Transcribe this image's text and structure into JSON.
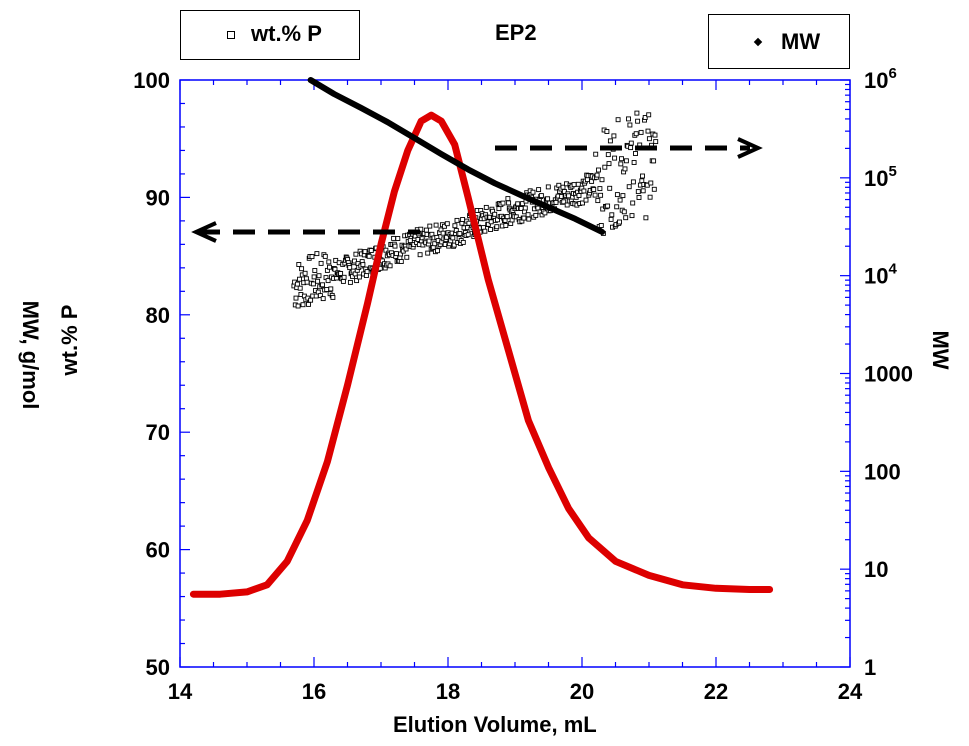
{
  "chart_data": {
    "type": "line",
    "title": "EP2",
    "xlabel": "Elution Volume, mL",
    "ylabel_left_outer": "MW, g/mol",
    "ylabel_left_inner": "wt.% P",
    "ylabel_right": "MW",
    "xlim": [
      14,
      24
    ],
    "ylim_left": [
      50,
      100
    ],
    "ylim_right_log": [
      1,
      1000000
    ],
    "x_ticks": [
      "14",
      "16",
      "18",
      "20",
      "22",
      "24"
    ],
    "y_left_ticks": [
      "50",
      "60",
      "70",
      "80",
      "90",
      "100"
    ],
    "y_right_ticks": [
      {
        "base": "1",
        "exp": ""
      },
      {
        "base": "10",
        "exp": ""
      },
      {
        "base": "100",
        "exp": ""
      },
      {
        "base": "1000",
        "exp": ""
      },
      {
        "base": "10",
        "exp": "4"
      },
      {
        "base": "10",
        "exp": "5"
      },
      {
        "base": "10",
        "exp": "6"
      }
    ],
    "legend": [
      {
        "label": "wt.% P",
        "marker": "open-square",
        "placement": "top-left"
      },
      {
        "label": "MW",
        "marker": "filled-diamond",
        "placement": "top-right"
      }
    ],
    "colors": {
      "rid_trace": "#dd0000",
      "axes": "#0000ff",
      "mw": "#000000",
      "wtp": "#000000"
    },
    "series": [
      {
        "name": "MW",
        "axis": "right-log",
        "x": [
          15.95,
          16.3,
          16.7,
          17.1,
          17.5,
          17.9,
          18.3,
          18.7,
          19.1,
          19.5,
          19.9,
          20.3
        ],
        "y": [
          1000000,
          720000,
          520000,
          370000,
          255000,
          175000,
          122000,
          88000,
          66000,
          50000,
          38000,
          28000
        ]
      },
      {
        "name": "wt.% P",
        "axis": "left",
        "x": [
          15.7,
          16.0,
          16.3,
          16.6,
          16.9,
          17.2,
          17.5,
          17.8,
          18.1,
          18.4,
          18.7,
          19.0,
          19.3,
          19.6,
          19.9,
          20.2,
          20.5,
          20.8,
          21.1
        ],
        "y": [
          82.5,
          83.0,
          83.5,
          84.0,
          84.8,
          85.5,
          86.0,
          86.5,
          87.0,
          87.7,
          88.3,
          89.0,
          89.5,
          90.0,
          90.5,
          91.0,
          92.0,
          93.0,
          92.5
        ]
      },
      {
        "name": "",
        "axis": "left",
        "x": [
          14.2,
          14.6,
          15.0,
          15.3,
          15.6,
          15.9,
          16.2,
          16.5,
          16.8,
          17.0,
          17.2,
          17.4,
          17.6,
          17.75,
          17.9,
          18.1,
          18.3,
          18.6,
          18.9,
          19.2,
          19.5,
          19.8,
          20.1,
          20.5,
          21.0,
          21.5,
          22.0,
          22.5,
          22.8
        ],
        "y": [
          56.2,
          56.2,
          56.4,
          57.0,
          59.0,
          62.5,
          67.5,
          74.0,
          81.0,
          86.0,
          90.5,
          94.0,
          96.5,
          97.0,
          96.5,
          94.5,
          90.0,
          83.0,
          77.0,
          71.0,
          67.0,
          63.5,
          61.0,
          59.0,
          57.8,
          57.0,
          56.7,
          56.6,
          56.6
        ]
      }
    ]
  }
}
